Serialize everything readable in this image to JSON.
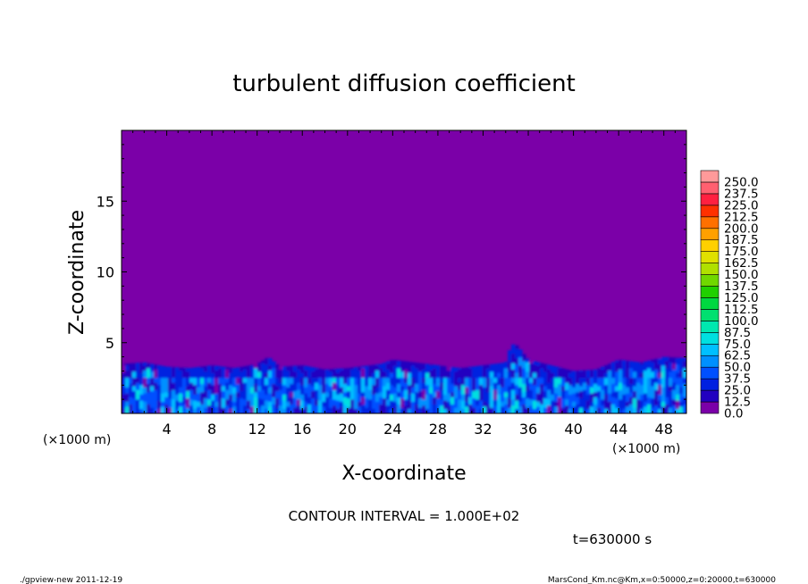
{
  "chart_data": {
    "type": "heatmap",
    "title": "turbulent diffusion coefficient",
    "xlabel": "X-coordinate",
    "ylabel": "Z-coordinate",
    "x_unit_left": "(×1000 m)",
    "x_unit_right": "(×1000 m)",
    "xlim": [
      0,
      50
    ],
    "ylim": [
      0,
      20
    ],
    "x_ticks": [
      "4",
      "8",
      "12",
      "16",
      "20",
      "24",
      "28",
      "32",
      "36",
      "40",
      "44",
      "48"
    ],
    "y_ticks": [
      "5",
      "10",
      "15"
    ],
    "colorbar": {
      "levels": [
        "0.0",
        "12.5",
        "25.0",
        "37.5",
        "50.0",
        "62.5",
        "75.0",
        "87.5",
        "100.0",
        "112.5",
        "125.0",
        "137.5",
        "150.0",
        "162.5",
        "175.0",
        "187.5",
        "200.0",
        "212.5",
        "225.0",
        "237.5",
        "250.0"
      ],
      "colors": [
        "#7b00a8",
        "#2200c0",
        "#0020e0",
        "#0050ff",
        "#0090ff",
        "#00c0ff",
        "#00e0e0",
        "#00e8b0",
        "#00e070",
        "#00d840",
        "#20d000",
        "#70d800",
        "#b0e000",
        "#e0e000",
        "#ffd000",
        "#ffa000",
        "#ff7000",
        "#ff3000",
        "#ff2040",
        "#ff6070",
        "#ff9a9a"
      ]
    },
    "field_profile": {
      "background_value": 0.0,
      "x_km": [
        0,
        2,
        4,
        6,
        8,
        10,
        12,
        13,
        14,
        16,
        18,
        20,
        22,
        23,
        24,
        26,
        28,
        30,
        32,
        34,
        34.5,
        35,
        36,
        38,
        40,
        42,
        44,
        46,
        48,
        50
      ],
      "top_km": [
        3.5,
        3.6,
        3.3,
        3.2,
        3.4,
        3.2,
        3.5,
        4.0,
        3.3,
        3.4,
        3.1,
        3.2,
        3.4,
        3.5,
        3.8,
        3.6,
        3.4,
        3.2,
        3.4,
        3.6,
        4.9,
        4.8,
        3.8,
        3.4,
        3.0,
        3.1,
        3.8,
        3.6,
        4.0,
        3.9
      ]
    }
  },
  "annotations": {
    "contour_interval": "CONTOUR INTERVAL = 1.000E+02",
    "time": "t=630000 s",
    "footer_left": "./gpview-new  2011-12-19",
    "footer_right": "MarsCond_Km.nc@Km,x=0:50000,z=0:20000,t=630000"
  }
}
